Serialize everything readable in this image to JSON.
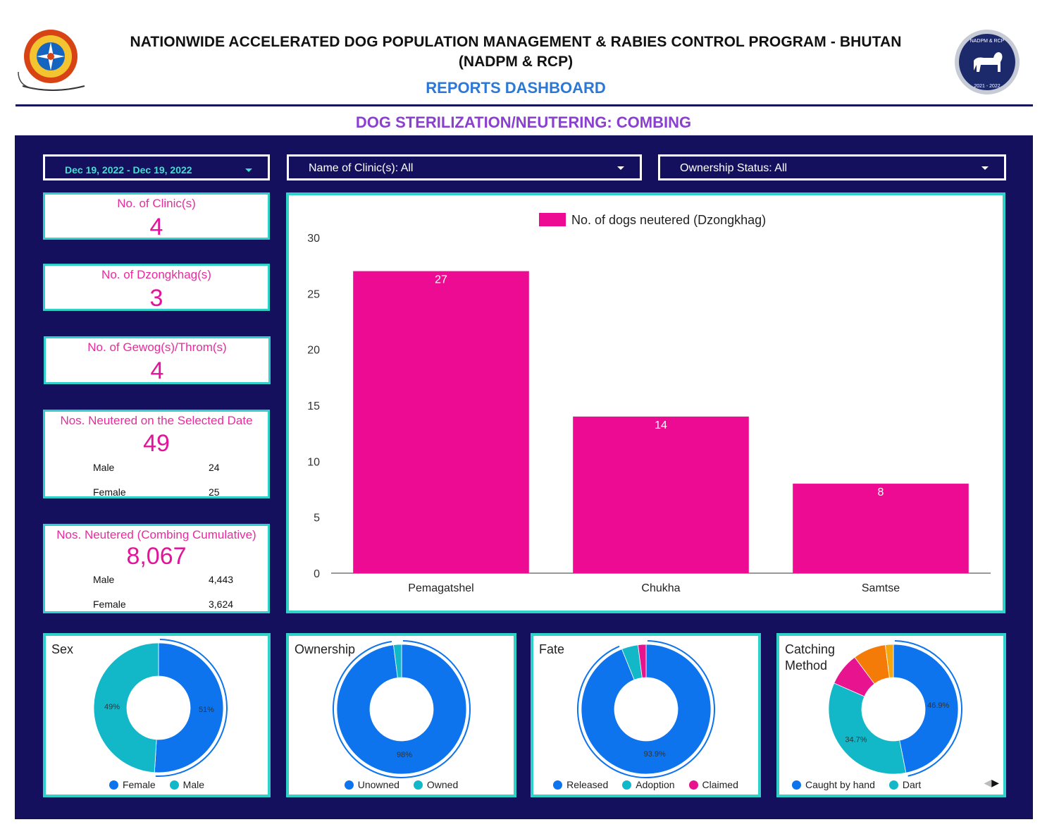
{
  "header": {
    "title_line1": "NATIONWIDE ACCELERATED DOG POPULATION MANAGEMENT & RABIES CONTROL PROGRAM - BHUTAN",
    "title_line2": "(NADPM & RCP)",
    "subtitle": "REPORTS DASHBOARD",
    "logo_left_text": "Royal Government of Bhutan emblem",
    "logo_right_text": "NADPM & RCP",
    "logo_right_years": "2021 - 2022"
  },
  "section_title": "DOG STERILIZATION/NEUTERING: COMBING",
  "filters": {
    "date_range": "Dec 19, 2022 - Dec 19, 2022",
    "clinic": "Name of Clinic(s): All",
    "ownership": "Ownership Status: All"
  },
  "kpis": {
    "clinics": {
      "label": "No. of Clinic(s)",
      "value": "4"
    },
    "dzongkhags": {
      "label": "No. of Dzongkhag(s)",
      "value": "3"
    },
    "gewogs": {
      "label": "No. of Gewog(s)/Throm(s)",
      "value": "4"
    },
    "selected_date": {
      "label": "Nos. Neutered on the Selected Date",
      "value": "49",
      "male_label": "Male",
      "male": "24",
      "female_label": "Female",
      "female": "25"
    },
    "cumulative": {
      "label": "Nos. Neutered (Combing Cumulative)",
      "value": "8,067",
      "male_label": "Male",
      "male": "4,443",
      "female_label": "Female",
      "female": "3,624"
    }
  },
  "colors": {
    "panel": "#14105e",
    "accent_border": "#2fd1c8",
    "bar": "#ec0b92",
    "blue": "#0d74ee",
    "teal": "#13b8c8",
    "pink": "#e8138e",
    "orange": "#f47b07",
    "amber": "#f5a70f"
  },
  "chart_data": [
    {
      "type": "bar",
      "legend": "No. of dogs neutered (Dzongkhag)",
      "categories": [
        "Pemagatshel",
        "Chukha",
        "Samtse"
      ],
      "values": [
        27,
        14,
        8
      ],
      "ylim": [
        0,
        30
      ],
      "yticks": [
        "0",
        "5",
        "10",
        "15",
        "20",
        "25",
        "30"
      ],
      "grid": false,
      "legend_position": "top"
    },
    {
      "type": "pie",
      "title": "Sex",
      "labels": [
        "Female",
        "Male"
      ],
      "values": [
        51,
        49
      ],
      "value_labels": [
        "51%",
        "49%"
      ],
      "colors": [
        "#0d74ee",
        "#13b8c8"
      ]
    },
    {
      "type": "pie",
      "title": "Ownership",
      "labels": [
        "Unowned",
        "Owned"
      ],
      "values": [
        98,
        2
      ],
      "value_labels": [
        "98%",
        ""
      ],
      "colors": [
        "#0d74ee",
        "#13b8c8"
      ]
    },
    {
      "type": "pie",
      "title": "Fate",
      "labels": [
        "Released",
        "Adoption",
        "Claimed"
      ],
      "values": [
        93.9,
        4.1,
        2.0
      ],
      "value_labels": [
        "93.9%",
        "",
        ""
      ],
      "colors": [
        "#0d74ee",
        "#13b8c8",
        "#e8138e"
      ]
    },
    {
      "type": "pie",
      "title": "Catching Method",
      "title_line1": "Catching",
      "title_line2": "Method",
      "labels": [
        "Caught by hand",
        "Dart",
        "",
        "",
        ""
      ],
      "legend_labels": [
        "Caught by hand",
        "Dart"
      ],
      "values": [
        46.9,
        34.7,
        8.2,
        8.2,
        2.0
      ],
      "value_labels": [
        "46.9%",
        "34.7%",
        "",
        "",
        ""
      ],
      "colors": [
        "#0d74ee",
        "#13b8c8",
        "#e8138e",
        "#f47b07",
        "#f5a70f"
      ]
    }
  ]
}
